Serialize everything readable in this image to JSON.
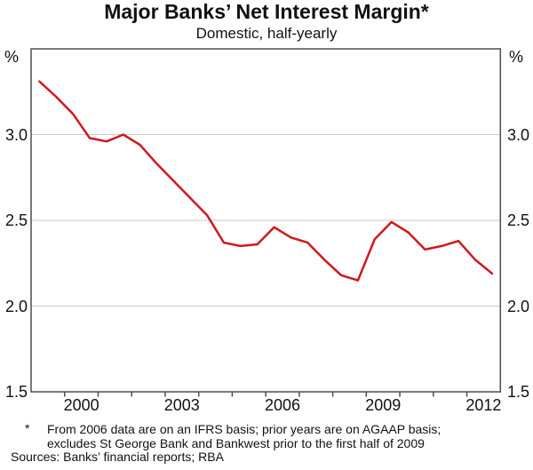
{
  "header": {
    "title": "Major Banks’ Net Interest Margin*",
    "subtitle": "Domestic, half-yearly"
  },
  "footnote": {
    "marker": "*",
    "line1": "From 2006 data are on an IFRS basis; prior years are on AGAAP basis;",
    "line2": "excludes St George Bank and Bankwest prior to the first half of 2009",
    "sources": "Sources: Banks’ financial reports; RBA"
  },
  "colors": {
    "line": "#d0171d",
    "gridline": "#c9c9c9",
    "frame": "#4d4d4d",
    "text": "#111111",
    "background": "#ffffff"
  },
  "chart_data": {
    "type": "line",
    "title": "Major Banks’ Net Interest Margin*",
    "subtitle": "Domestic, half-yearly",
    "unit": "%",
    "grid": true,
    "legend": "none",
    "x": [
      1999.25,
      1999.75,
      2000.25,
      2000.75,
      2001.25,
      2001.75,
      2002.25,
      2002.75,
      2003.25,
      2003.75,
      2004.25,
      2004.75,
      2005.25,
      2005.75,
      2006.25,
      2006.75,
      2007.25,
      2007.75,
      2008.25,
      2008.75,
      2009.25,
      2009.75,
      2010.25,
      2010.75,
      2011.25,
      2011.75,
      2012.25,
      2012.75
    ],
    "series": [
      {
        "name": "Major banks’ net interest margin (%)",
        "color": "#d0171d",
        "values": [
          3.31,
          3.22,
          3.12,
          2.98,
          2.96,
          3.0,
          2.94,
          2.83,
          2.73,
          2.63,
          2.53,
          2.37,
          2.35,
          2.36,
          2.46,
          2.4,
          2.37,
          2.27,
          2.18,
          2.15,
          2.39,
          2.49,
          2.43,
          2.33,
          2.35,
          2.38,
          2.27,
          2.19
        ]
      }
    ],
    "x_axis": {
      "range": [
        1999,
        2013
      ],
      "tick_years": [
        2000,
        2001,
        2002,
        2003,
        2004,
        2005,
        2006,
        2007,
        2008,
        2009,
        2010,
        2011,
        2012
      ],
      "label_years": [
        2000,
        2003,
        2006,
        2009,
        2012
      ],
      "labels": [
        "2000",
        "2003",
        "2006",
        "2009",
        "2012"
      ]
    },
    "y_axis": {
      "range": [
        1.5,
        3.5
      ],
      "unit_label": "%",
      "gridline_values": [
        3.0,
        2.5,
        2.0
      ],
      "ticks": [
        {
          "label": "3.0",
          "value": 3.0
        },
        {
          "label": "2.5",
          "value": 2.5
        },
        {
          "label": "2.0",
          "value": 2.0
        },
        {
          "label": "1.5",
          "value": 1.5
        }
      ]
    }
  }
}
